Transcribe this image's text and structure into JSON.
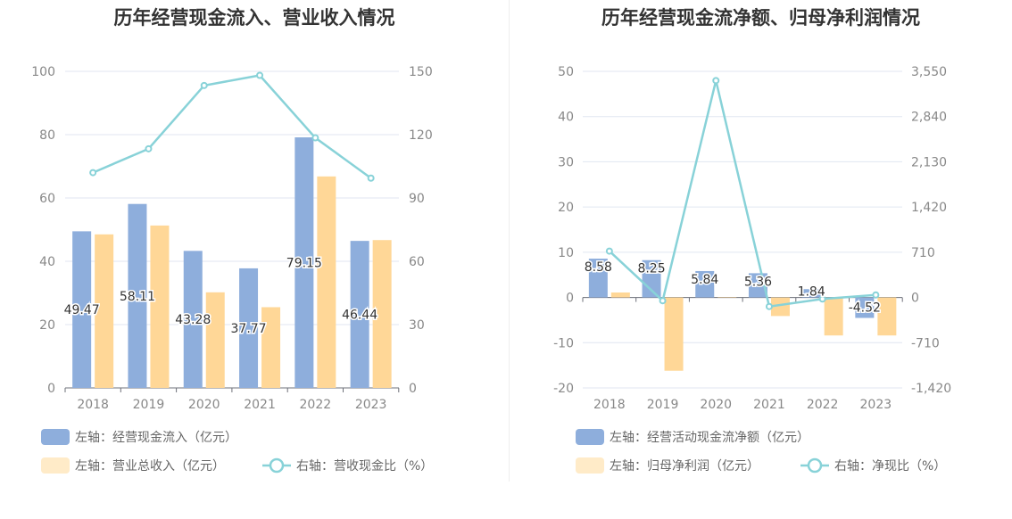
{
  "colors": {
    "bar_blue": "#8EAEDC",
    "bar_orange": "#FFD797",
    "line": "#88D2D8",
    "grid": "#E0E6F1",
    "axis_text": "#888888"
  },
  "chart_data": [
    {
      "type": "bar",
      "title": "历年经营现金流入、营业收入情况",
      "categories": [
        "2018",
        "2019",
        "2020",
        "2021",
        "2022",
        "2023"
      ],
      "left_axis": {
        "ticks": [
          "0",
          "20",
          "40",
          "60",
          "80",
          "100"
        ],
        "min": 0,
        "max": 100
      },
      "right_axis": {
        "ticks": [
          "0",
          "30",
          "60",
          "90",
          "120",
          "150"
        ],
        "min": 0,
        "max": 150
      },
      "grid": true,
      "legend_position": "bottom",
      "series": [
        {
          "name": "左轴：经营现金流入（亿元）",
          "kind": "bar",
          "axis": "left",
          "color": "#8EAEDC",
          "values": [
            49.47,
            58.11,
            43.28,
            37.77,
            79.15,
            46.44
          ],
          "labels": [
            "49.47",
            "58.11",
            "43.28",
            "37.77",
            "79.15",
            "46.44"
          ]
        },
        {
          "name": "左轴：营业总收入（亿元）",
          "kind": "bar",
          "axis": "left",
          "color": "#FFD797",
          "values": [
            48.5,
            51.3,
            30.2,
            25.5,
            66.8,
            46.7
          ]
        },
        {
          "name": "右轴：营收现金比（%）",
          "kind": "line",
          "axis": "right",
          "color": "#88D2D8",
          "values": [
            102,
            113.3,
            143.3,
            148.1,
            118.5,
            99.4
          ]
        }
      ],
      "legend": [
        {
          "label": "左轴：经营现金流入（亿元）",
          "kind": "bar",
          "color": "#8EAEDC"
        },
        {
          "label": "左轴：营业总收入（亿元）",
          "kind": "bar",
          "color": "#FFEBC8"
        },
        {
          "label": "右轴：营收现金比（%）",
          "kind": "line",
          "color": "#88D2D8"
        }
      ]
    },
    {
      "type": "bar",
      "title": "历年经营现金流净额、归母净利润情况",
      "categories": [
        "2018",
        "2019",
        "2020",
        "2021",
        "2022",
        "2023"
      ],
      "left_axis": {
        "ticks": [
          "-20",
          "-10",
          "0",
          "10",
          "20",
          "30",
          "40",
          "50"
        ],
        "min": -20,
        "max": 50
      },
      "right_axis": {
        "ticks": [
          "-1,420",
          "-710",
          "0",
          "710",
          "1,420",
          "2,130",
          "2,840",
          "3,550"
        ],
        "min": -1420,
        "max": 3550
      },
      "grid": true,
      "legend_position": "bottom",
      "series": [
        {
          "name": "左轴：经营活动现金流净额（亿元）",
          "kind": "bar",
          "axis": "left",
          "color": "#8EAEDC",
          "values": [
            8.58,
            8.25,
            5.84,
            5.36,
            1.84,
            -4.52
          ],
          "labels": [
            "8.58",
            "8.25",
            "5.84",
            "5.36",
            "1.84",
            "-4.52"
          ]
        },
        {
          "name": "左轴：归母净利润（亿元）",
          "kind": "bar",
          "axis": "left",
          "color": "#FFD797",
          "values": [
            1.1,
            -16.2,
            0.1,
            -4.1,
            -8.4,
            -8.4
          ]
        },
        {
          "name": "右轴：净现比（%）",
          "kind": "line",
          "axis": "right",
          "color": "#88D2D8",
          "values": [
            728,
            -51,
            3405,
            -142,
            -24,
            40
          ]
        }
      ],
      "legend": [
        {
          "label": "左轴：经营活动现金流净额（亿元）",
          "kind": "bar",
          "color": "#8EAEDC"
        },
        {
          "label": "左轴：归母净利润（亿元）",
          "kind": "bar",
          "color": "#FFEBC8"
        },
        {
          "label": "右轴：净现比（%）",
          "kind": "line",
          "color": "#88D2D8"
        }
      ]
    }
  ]
}
